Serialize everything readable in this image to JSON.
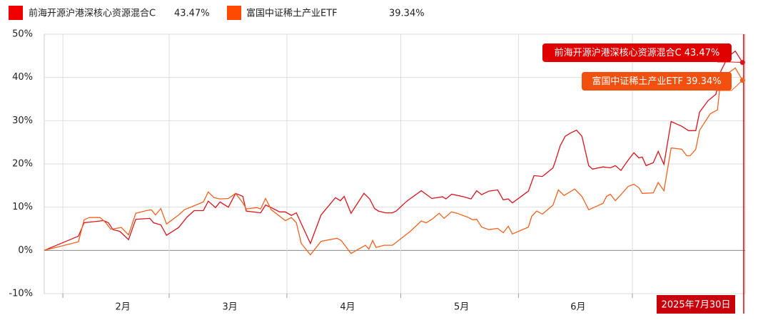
{
  "chart_data": {
    "type": "line",
    "date_label": "2025年7月30日",
    "xlim": [
      27.1,
      211.7
    ],
    "xticks": [
      {
        "value": 47.8,
        "label": "2月"
      },
      {
        "value": 76,
        "label": "3月"
      },
      {
        "value": 107,
        "label": "4月"
      },
      {
        "value": 137,
        "label": "5月"
      },
      {
        "value": 167.7,
        "label": "6月"
      }
    ],
    "xgrid": [
      32,
      60,
      91,
      121,
      152,
      182
    ],
    "ylim": [
      -10,
      50
    ],
    "yticks": [
      {
        "value": -10,
        "label": "-10%"
      },
      {
        "value": 0,
        "label": "0%"
      },
      {
        "value": 10,
        "label": "10%"
      },
      {
        "value": 20,
        "label": "20%"
      },
      {
        "value": 30,
        "label": "30%"
      },
      {
        "value": 40,
        "label": "40%"
      },
      {
        "value": 50,
        "label": "50%"
      }
    ],
    "grid": true,
    "series": [
      {
        "name": "前海开源沪港深核心资源混合C",
        "color": "#d8141c",
        "legend_color": "#f00000",
        "end_label": "43.47%",
        "x": [
          27.1,
          36.1,
          37.6,
          42.7,
          44.0,
          45.2,
          47.0,
          49.3,
          51.2,
          54.9,
          55.9,
          57.8,
          59.3,
          62.5,
          64.7,
          66.6,
          69.0,
          70.3,
          72.2,
          73.4,
          75.6,
          77.5,
          79.4,
          80.3,
          84.1,
          85.4,
          86.9,
          89.1,
          90.6,
          92.2,
          93.5,
          97.2,
          100.0,
          103.8,
          105.1,
          106.1,
          107.9,
          111.3,
          112.8,
          114.1,
          115.1,
          117.0,
          118.8,
          119.8,
          122.6,
          126.4,
          129.2,
          132.0,
          132.9,
          134.4,
          137.6,
          139.5,
          141.0,
          142.3,
          144.2,
          146.5,
          148.0,
          149.3,
          150.4,
          154.6,
          156.1,
          158.3,
          161.1,
          161.7,
          163.0,
          164.3,
          165.8,
          167.3,
          168.7,
          170.5,
          171.5,
          174.3,
          176.2,
          177.5,
          179.0,
          180.9,
          182.4,
          183.7,
          184.6,
          185.6,
          187.5,
          188.8,
          190.3,
          192.2,
          195.0,
          196.8,
          198.7,
          199.7,
          201.9,
          204.0,
          205.3,
          207.2,
          209.1,
          211.0
        ],
        "values": [
          0,
          3.3,
          6.4,
          6.9,
          6.4,
          4.8,
          4.4,
          2.5,
          7.2,
          7.4,
          6.4,
          5.9,
          3.5,
          5.3,
          7.7,
          9.2,
          9.2,
          11.4,
          9.9,
          11.2,
          10.0,
          13.2,
          12.5,
          9.1,
          8.7,
          10.5,
          9.9,
          8.9,
          8.9,
          8.1,
          8.7,
          1.6,
          8.2,
          12.2,
          11.5,
          12.5,
          8.6,
          13.2,
          11.9,
          9.7,
          9.1,
          8.7,
          8.7,
          9.1,
          11.4,
          13.8,
          12.0,
          12.4,
          11.9,
          13.0,
          12.4,
          11.9,
          13.8,
          12.9,
          13.7,
          14.0,
          11.7,
          11.9,
          11.0,
          13.7,
          17.3,
          17.1,
          19.1,
          20.6,
          24.2,
          26.4,
          27.2,
          27.8,
          26.4,
          19.6,
          18.8,
          19.3,
          19.1,
          19.6,
          18.5,
          20.9,
          22.6,
          21.4,
          21.6,
          19.6,
          20.3,
          22.9,
          19.9,
          29.8,
          28.7,
          27.7,
          27.7,
          32.0,
          34.6,
          36.1,
          41.5,
          44.8,
          46.1,
          43.47
        ]
      },
      {
        "name": "富国中证稀土产业ETF",
        "color": "#f0621e",
        "legend_color": "#ff4a00",
        "end_label": "39.34%",
        "x": [
          27.1,
          36.1,
          37.6,
          39.0,
          41.8,
          43.3,
          44.6,
          47.4,
          49.3,
          51.2,
          54.0,
          55.3,
          56.4,
          57.8,
          59.3,
          62.5,
          64.0,
          66.2,
          69.0,
          70.3,
          71.8,
          73.4,
          75.6,
          77.5,
          79.4,
          80.3,
          83.1,
          84.1,
          85.4,
          86.9,
          90.6,
          92.2,
          93.5,
          94.8,
          97.2,
          100.0,
          104.2,
          105.3,
          107.9,
          111.7,
          112.6,
          113.6,
          114.5,
          116.6,
          118.8,
          123.5,
          126.4,
          127.7,
          129.2,
          131.1,
          132.4,
          134.3,
          135.8,
          138.6,
          139.9,
          141.0,
          142.3,
          144.2,
          146.5,
          148.0,
          149.3,
          150.4,
          154.6,
          155.5,
          156.8,
          158.3,
          161.1,
          162.5,
          164.0,
          166.8,
          168.7,
          170.5,
          174.3,
          175.2,
          176.2,
          177.5,
          179.0,
          180.9,
          182.4,
          183.7,
          184.6,
          187.5,
          188.8,
          190.3,
          192.2,
          195.0,
          196.3,
          197.2,
          198.7,
          199.7,
          202.5,
          204.4,
          205.3,
          207.2,
          209.1,
          211.0
        ],
        "values": [
          0,
          2.0,
          7.1,
          7.6,
          7.6,
          6.4,
          4.9,
          5.3,
          3.6,
          8.6,
          9.2,
          9.4,
          8.2,
          9.7,
          6.1,
          8.2,
          9.4,
          10.2,
          11.2,
          13.5,
          12.2,
          11.9,
          12.0,
          13.2,
          11.0,
          9.6,
          9.9,
          9.6,
          12.0,
          9.4,
          6.9,
          7.6,
          6.4,
          1.6,
          -1.0,
          2.1,
          2.8,
          2.3,
          -0.7,
          1.2,
          0.3,
          2.3,
          0.7,
          1.2,
          1.2,
          4.4,
          6.8,
          6.4,
          7.2,
          8.6,
          7.4,
          8.9,
          8.6,
          7.7,
          7.1,
          7.2,
          5.4,
          4.8,
          5.1,
          4.1,
          5.6,
          3.8,
          5.4,
          7.9,
          9.1,
          8.4,
          10.5,
          14.0,
          12.7,
          14.2,
          12.5,
          9.4,
          10.9,
          12.5,
          13.0,
          11.5,
          12.9,
          14.8,
          15.3,
          14.5,
          13.2,
          13.3,
          15.7,
          13.8,
          23.7,
          23.4,
          21.9,
          21.9,
          23.4,
          27.8,
          31.6,
          32.5,
          39.9,
          41.0,
          42.2,
          39.34
        ]
      }
    ]
  }
}
